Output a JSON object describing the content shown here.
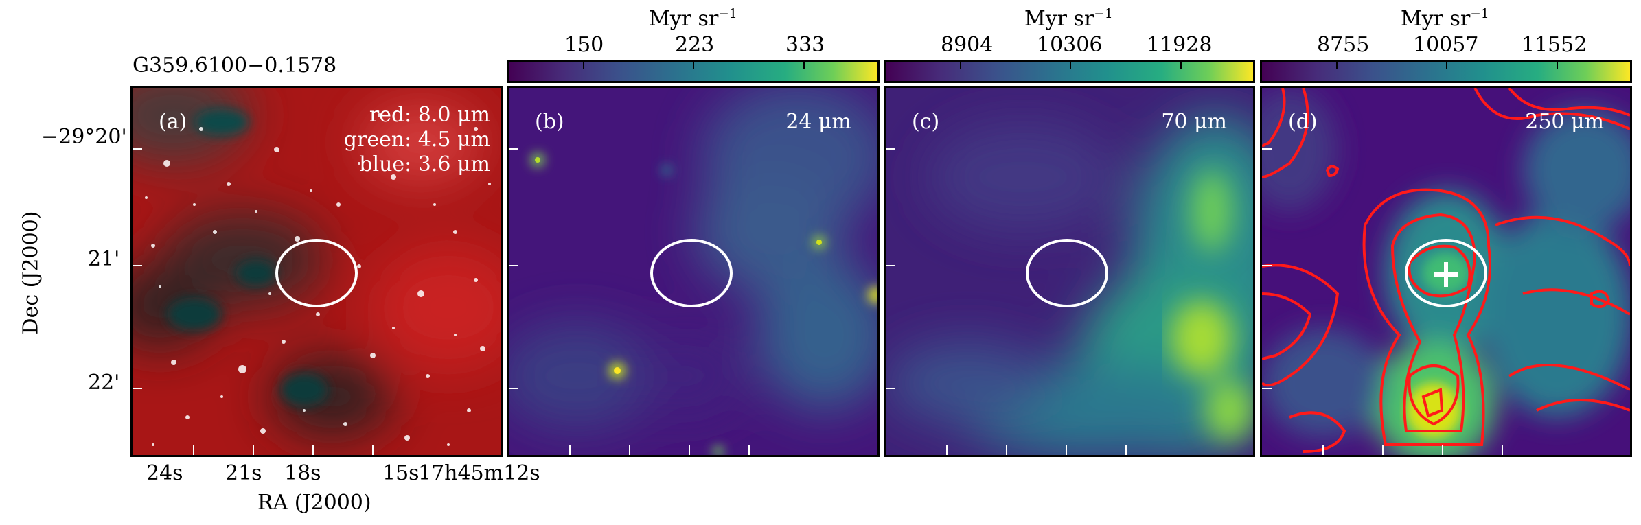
{
  "source_title": "G359.6100−0.1578",
  "axes": {
    "xlabel": "RA (J2000)",
    "ylabel": "Dec (J2000)",
    "x_ticks": [
      "24s",
      "21s",
      "18s",
      "15s",
      "17h45m12s"
    ],
    "y_ticks": [
      "−29°20'",
      "21'",
      "22'"
    ]
  },
  "colorbars": [
    {
      "unit_base": "Myr sr",
      "unit_exp": "−1",
      "ticks": [
        "150",
        "223",
        "333"
      ]
    },
    {
      "unit_base": "Myr sr",
      "unit_exp": "−1",
      "ticks": [
        "8904",
        "10306",
        "11928"
      ]
    },
    {
      "unit_base": "Myr sr",
      "unit_exp": "−1",
      "ticks": [
        "8755",
        "10057",
        "11552"
      ]
    }
  ],
  "panels": [
    {
      "label": "(a)",
      "legend": [
        "red: 8.0 μm",
        "green: 4.5 μm",
        "blue: 3.6 μm"
      ]
    },
    {
      "label": "(b)",
      "wavelength": "24 μm"
    },
    {
      "label": "(c)",
      "wavelength": "70 μm"
    },
    {
      "label": "(d)",
      "wavelength": "250 μm"
    }
  ],
  "colormap": "viridis",
  "overlays": {
    "ellipse_color": "#ffffff",
    "contour_color": "#ff1a1a",
    "marker": "cross"
  }
}
